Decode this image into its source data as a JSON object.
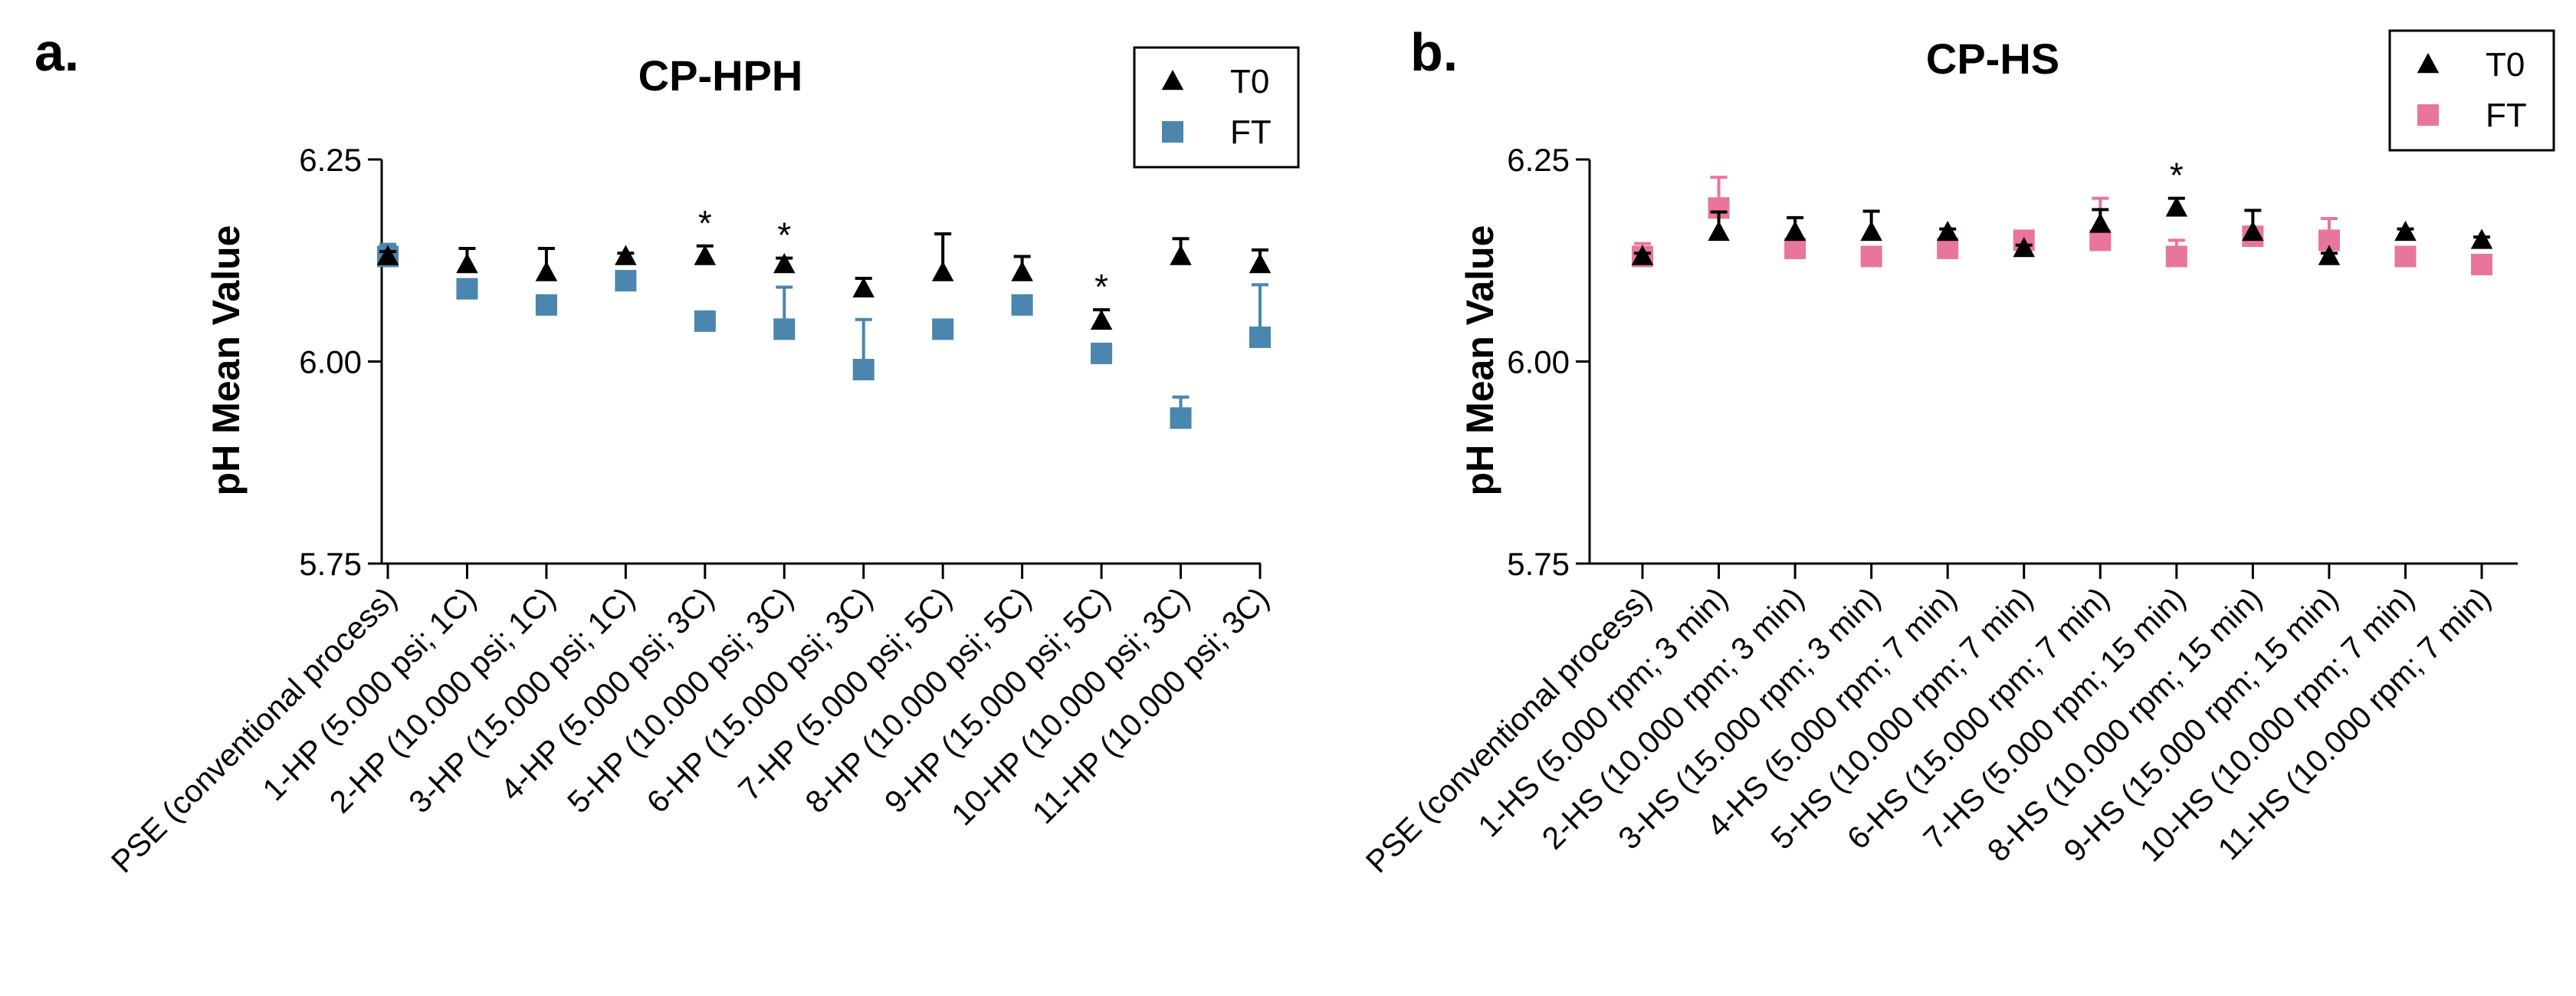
{
  "chart_data": [
    {
      "type": "scatter",
      "panel_label": "a.",
      "title": "CP-HPH",
      "xlabel": "",
      "ylabel": "pH Mean Value",
      "ylim": [
        5.75,
        6.25
      ],
      "yticks": [
        "5.75",
        "6.00",
        "6.25"
      ],
      "grid": false,
      "legend_position": "top-right",
      "categories": [
        "PSE (conventional process)",
        "1-HP (5.000 psi; 1C)",
        "2-HP (10.000 psi; 1C)",
        "3-HP (15.000 psi; 1C)",
        "4-HP (5.000 psi; 3C)",
        "5-HP (10.000 psi; 3C)",
        "6-HP (15.000 psi; 3C)",
        "7-HP (5.000 psi; 5C)",
        "8-HP (10.000 psi; 5C)",
        "9-HP (15.000 psi; 5C)",
        "10-HP (10.000 psi; 3C)",
        "11-HP (10.000 psi; 3C)"
      ],
      "series": [
        {
          "name": "T0",
          "marker": "triangle",
          "color": "#000000",
          "values": [
            6.13,
            6.12,
            6.11,
            6.13,
            6.13,
            6.12,
            6.09,
            6.11,
            6.11,
            6.05,
            6.13,
            6.12
          ],
          "error": [
            0.006,
            0.02,
            0.03,
            0.004,
            0.013,
            0.008,
            0.013,
            0.048,
            0.02,
            0.014,
            0.022,
            0.018
          ]
        },
        {
          "name": "FT",
          "marker": "square",
          "color": "#4a86ad",
          "values": [
            6.13,
            6.09,
            6.07,
            6.1,
            6.05,
            6.04,
            5.99,
            6.04,
            6.07,
            6.01,
            5.93,
            6.03
          ],
          "error": [
            0.015,
            0.008,
            0.006,
            0.004,
            0.004,
            0.052,
            0.062,
            0.004,
            0.006,
            0.004,
            0.026,
            0.065
          ]
        }
      ],
      "significance_markers": [
        {
          "category_index": 4,
          "text": "*"
        },
        {
          "category_index": 5,
          "text": "*"
        },
        {
          "category_index": 9,
          "text": "*"
        }
      ]
    },
    {
      "type": "scatter",
      "panel_label": "b.",
      "title": "CP-HS",
      "xlabel": "",
      "ylabel": "pH Mean Value",
      "ylim": [
        5.75,
        6.25
      ],
      "yticks": [
        "5.75",
        "6.00",
        "6.25"
      ],
      "grid": false,
      "legend_position": "top-right",
      "categories": [
        "PSE (conventional process)",
        "1-HS (5.000 rpm; 3 min)",
        "2-HS (10.000 rpm; 3 min)",
        "3-HS (15.000 rpm; 3 min)",
        "4-HS (5.000 rpm; 7 min)",
        "5-HS (10.000 rpm; 7 min)",
        "6-HS (15.000 rpm; 7 min)",
        "7-HS (5.000 rpm; 15 min)",
        "8-HS (10.000 rpm; 15 min)",
        "9-HS (15.000 rpm; 15 min)",
        "10-HS (10.000 rpm; 7 min)",
        "11-HS (10.000 rpm; 7 min)"
      ],
      "series": [
        {
          "name": "T0",
          "marker": "triangle",
          "color": "#000000",
          "values": [
            6.13,
            6.16,
            6.16,
            6.16,
            6.16,
            6.14,
            6.17,
            6.19,
            6.16,
            6.13,
            6.16,
            6.15
          ],
          "error": [
            0.004,
            0.025,
            0.018,
            0.026,
            0.004,
            0.004,
            0.018,
            0.012,
            0.027,
            0.004,
            0.004,
            0.004
          ],
          "error_direction": "up"
        },
        {
          "name": "FT",
          "marker": "square",
          "color": "#e8769a",
          "values": [
            6.13,
            6.19,
            6.14,
            6.13,
            6.14,
            6.15,
            6.15,
            6.13,
            6.155,
            6.15,
            6.13,
            6.12
          ],
          "error": [
            0.016,
            0.038,
            0.006,
            0.007,
            0.004,
            0.004,
            0.052,
            0.02,
            0.004,
            0.027,
            0.01,
            0.01
          ],
          "error_direction": "up"
        }
      ],
      "significance_markers": [
        {
          "category_index": 7,
          "text": "*"
        }
      ]
    }
  ]
}
